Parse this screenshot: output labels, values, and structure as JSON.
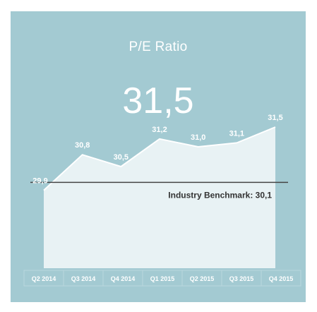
{
  "widget": {
    "title": "P/E Ratio",
    "value": "31,5"
  },
  "colors": {
    "background": "#a3cad2",
    "area": "#e8f2f4",
    "line": "#ffffff",
    "benchmark": "#444444",
    "text": "#ffffff"
  },
  "chart_data": {
    "type": "area",
    "title": "P/E Ratio",
    "categories": [
      "Q2 2014",
      "Q3 2014",
      "Q4 2014",
      "Q1 2015",
      "Q2 2015",
      "Q3 2015",
      "Q4 2015"
    ],
    "series": [
      {
        "values": [
          29.9,
          30.8,
          30.5,
          31.2,
          31.0,
          31.1,
          31.5
        ]
      }
    ],
    "data_labels": [
      "29,9",
      "30,8",
      "30,5",
      "31,2",
      "31,0",
      "31,1",
      "31,5"
    ],
    "benchmark": {
      "label": "Industry Benchmark: 30,1",
      "value": 30.1
    },
    "ylim": [
      28.0,
      32.0
    ],
    "grid": false,
    "legend": "none"
  }
}
